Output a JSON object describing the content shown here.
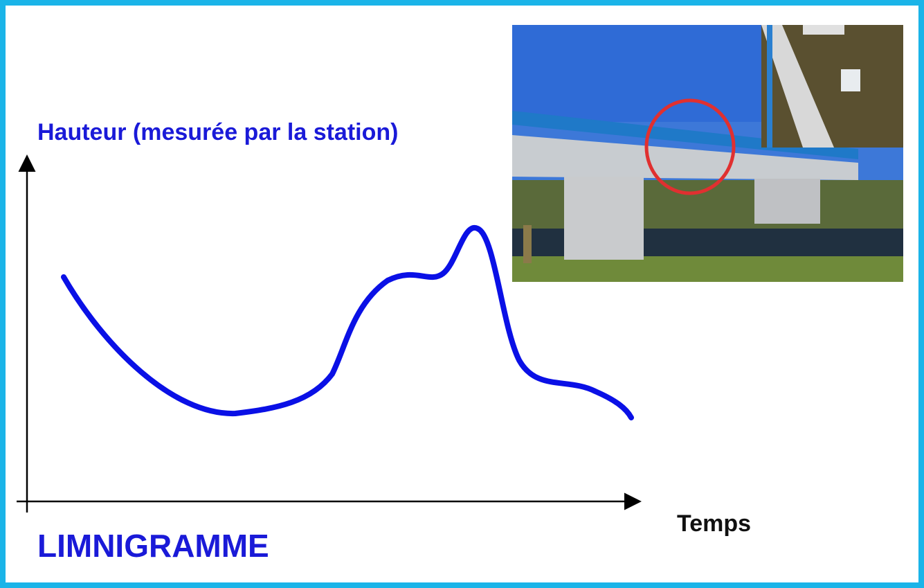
{
  "y_axis_label": "Hauteur (mesurée par la station)",
  "x_axis_label": "Temps",
  "title": "LIMNIGRAMME"
}
